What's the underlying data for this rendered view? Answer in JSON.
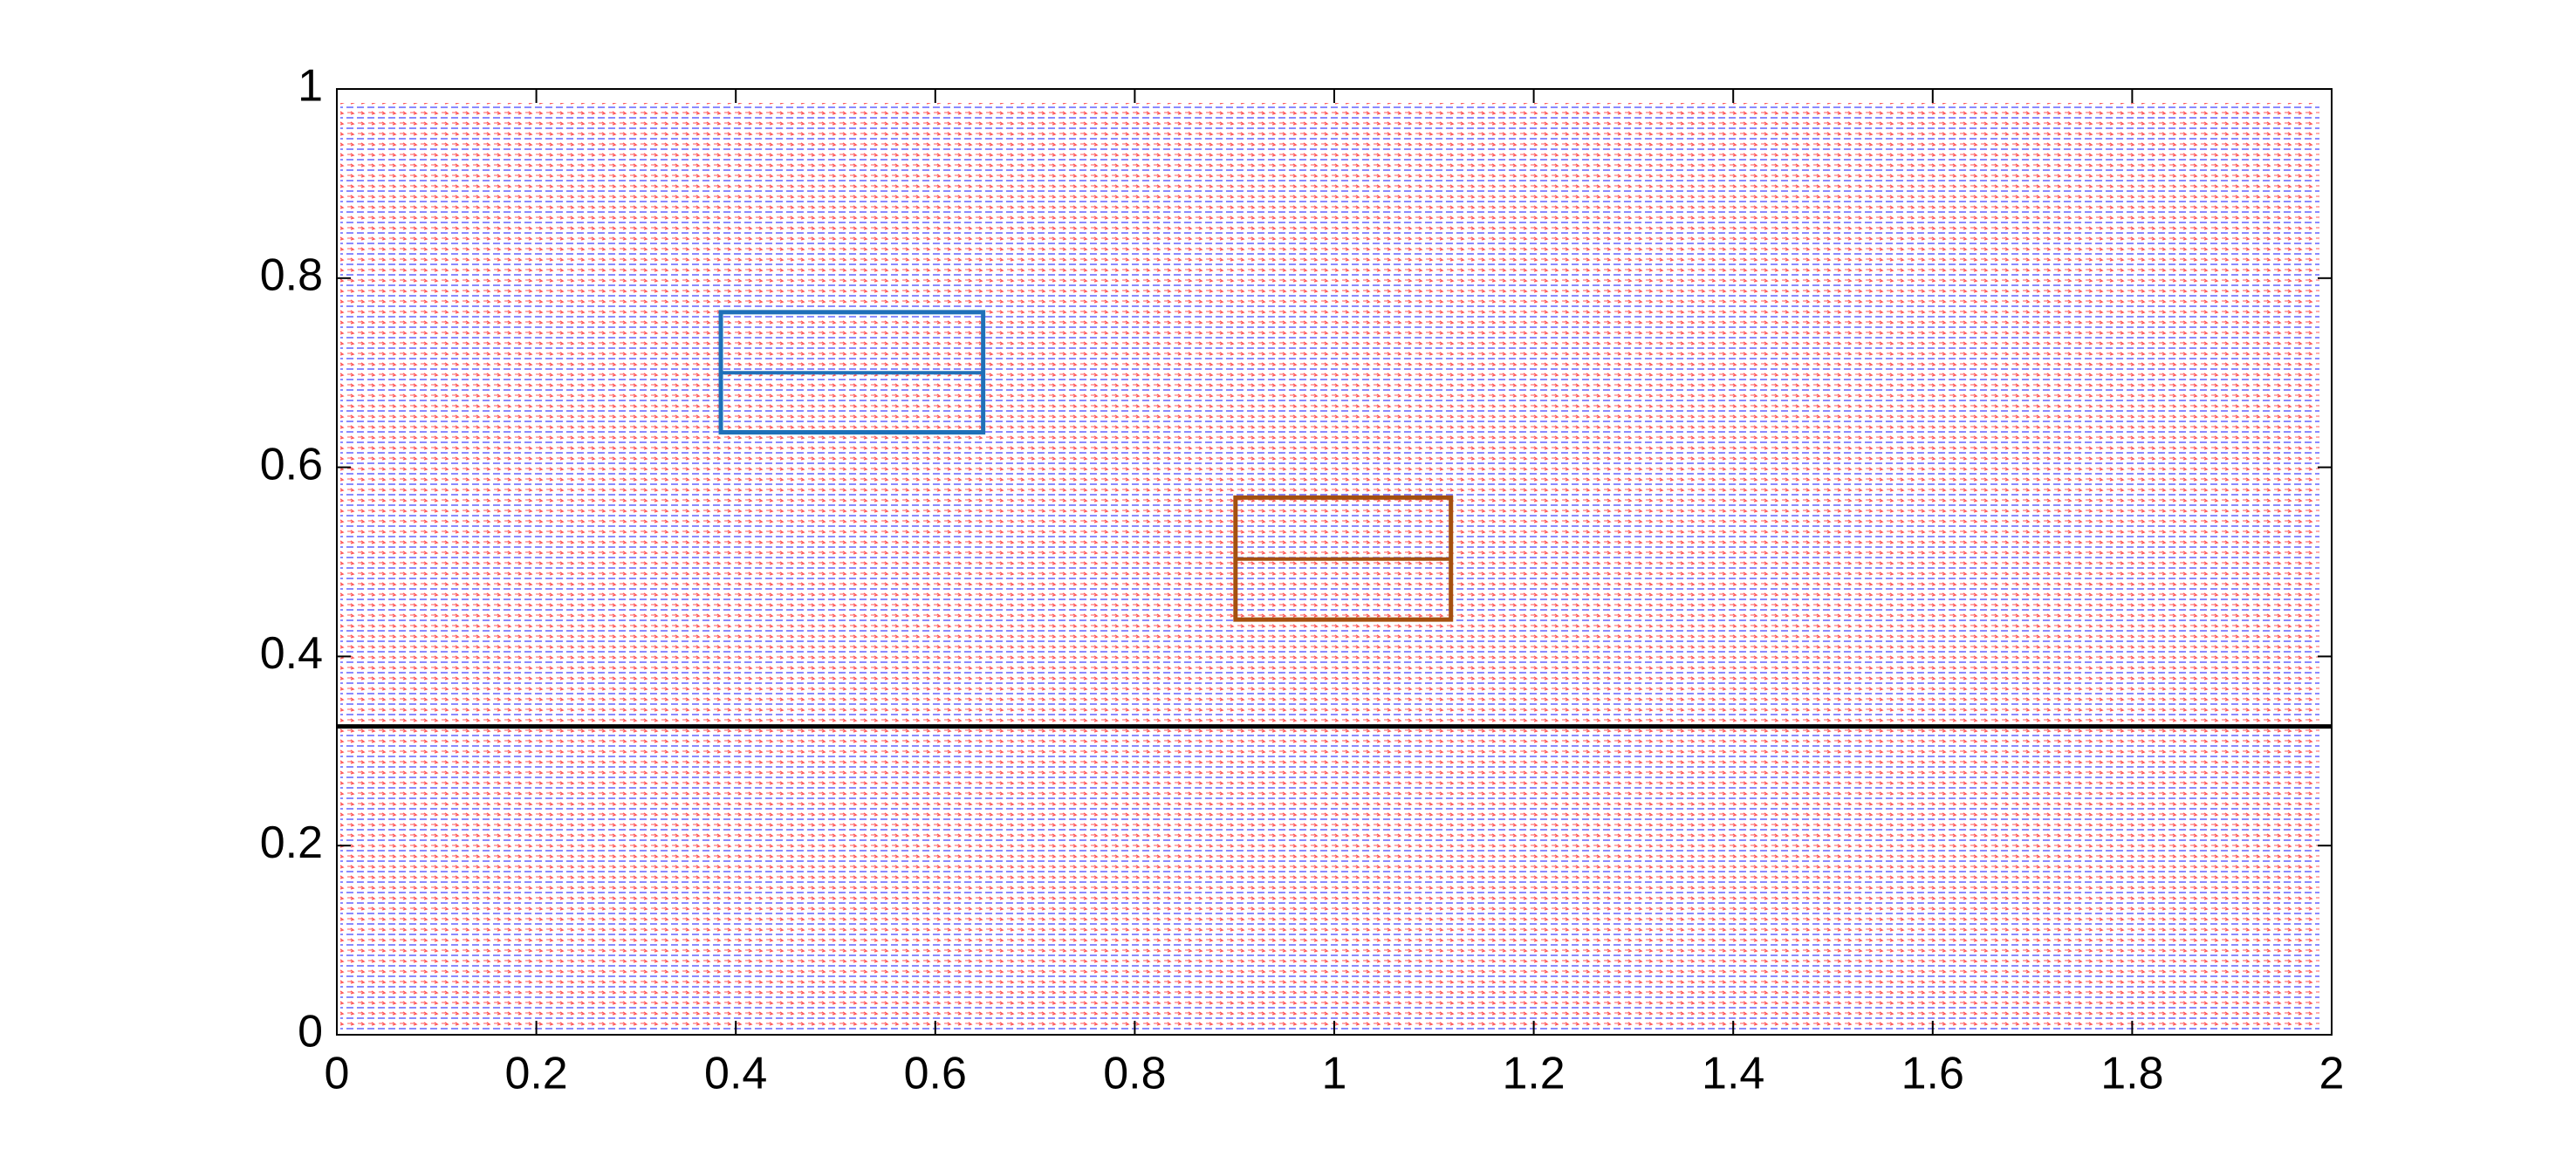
{
  "chart_data": {
    "type": "quiver",
    "xlim": [
      0,
      2
    ],
    "ylim": [
      0,
      1
    ],
    "xticks": [
      0,
      0.2,
      0.4,
      0.6,
      0.8,
      1,
      1.2,
      1.4,
      1.6,
      1.8,
      2
    ],
    "yticks": [
      0,
      0.2,
      0.4,
      0.6,
      0.8,
      1
    ],
    "field_colors": [
      "#ff2020",
      "#2020ff"
    ],
    "boxes": [
      {
        "x": [
          0.385,
          0.648
        ],
        "y": [
          0.637,
          0.764
        ],
        "mid": 0.7,
        "color": "#1f70b8"
      },
      {
        "x": [
          0.901,
          1.117
        ],
        "y": [
          0.439,
          0.568
        ],
        "mid": 0.503,
        "color": "#a4500f"
      }
    ],
    "hline": {
      "y": 0.326,
      "color": "#000000"
    }
  }
}
